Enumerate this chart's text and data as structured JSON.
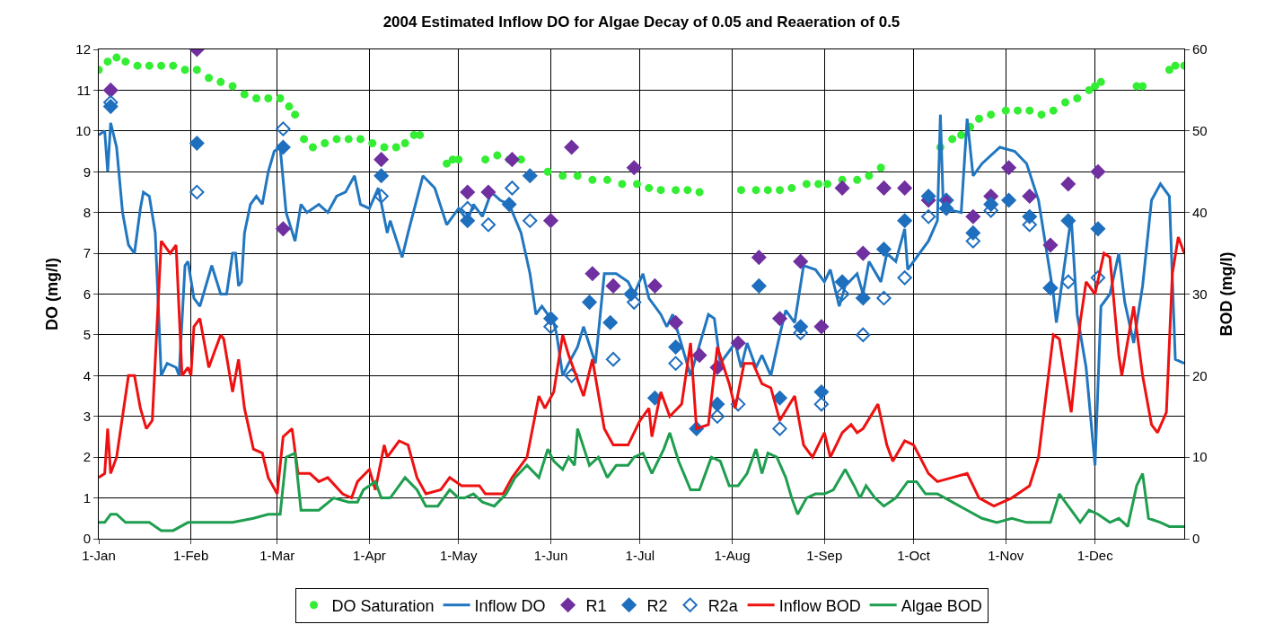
{
  "chart_data": {
    "type": "line",
    "title": "2004 Estimated Inflow DO for Algae Decay of 0.05 and Reaeration of 0.5",
    "ylabel": "DO (mg/l)",
    "y2label": "BOD (mg/l)",
    "xlim": [
      "2004-01-01",
      "2004-12-31"
    ],
    "xticks": [
      {
        "value": "2004-01-01",
        "label": "1-Jan"
      },
      {
        "value": "2004-02-01",
        "label": "1-Feb"
      },
      {
        "value": "2004-03-01",
        "label": "1-Mar"
      },
      {
        "value": "2004-04-01",
        "label": "1-Apr"
      },
      {
        "value": "2004-05-01",
        "label": "1-May"
      },
      {
        "value": "2004-06-01",
        "label": "1-Jun"
      },
      {
        "value": "2004-07-01",
        "label": "1-Jul"
      },
      {
        "value": "2004-08-01",
        "label": "1-Aug"
      },
      {
        "value": "2004-09-01",
        "label": "1-Sep"
      },
      {
        "value": "2004-10-01",
        "label": "1-Oct"
      },
      {
        "value": "2004-11-01",
        "label": "1-Nov"
      },
      {
        "value": "2004-12-01",
        "label": "1-Dec"
      }
    ],
    "ylim": [
      0,
      12
    ],
    "yticks": [
      0,
      1,
      2,
      3,
      4,
      5,
      6,
      7,
      8,
      9,
      10,
      11,
      12
    ],
    "y2lim": [
      0,
      60
    ],
    "y2ticks": [
      0,
      10,
      20,
      30,
      40,
      50,
      60
    ],
    "grid": true,
    "legend": "bottom",
    "series": [
      {
        "name": "DO Saturation",
        "type": "scatter",
        "marker": "circle",
        "color": "#33ee33",
        "x": [
          "2004-01-01",
          "2004-01-04",
          "2004-01-07",
          "2004-01-10",
          "2004-01-14",
          "2004-01-18",
          "2004-01-22",
          "2004-01-26",
          "2004-01-30",
          "2004-02-03",
          "2004-02-07",
          "2004-02-11",
          "2004-02-15",
          "2004-02-19",
          "2004-02-23",
          "2004-02-27",
          "2004-03-02",
          "2004-03-05",
          "2004-03-07",
          "2004-03-10",
          "2004-03-13",
          "2004-03-17",
          "2004-03-21",
          "2004-03-25",
          "2004-03-29",
          "2004-04-02",
          "2004-04-06",
          "2004-04-10",
          "2004-04-13",
          "2004-04-16",
          "2004-04-18",
          "2004-04-27",
          "2004-04-29",
          "2004-05-01",
          "2004-05-10",
          "2004-05-14",
          "2004-05-18",
          "2004-05-22",
          "2004-05-31",
          "2004-06-05",
          "2004-06-10",
          "2004-06-15",
          "2004-06-20",
          "2004-06-25",
          "2004-06-30",
          "2004-07-04",
          "2004-07-08",
          "2004-07-13",
          "2004-07-17",
          "2004-07-21",
          "2004-08-04",
          "2004-08-09",
          "2004-08-13",
          "2004-08-17",
          "2004-08-21",
          "2004-08-26",
          "2004-08-30",
          "2004-09-02",
          "2004-09-07",
          "2004-09-12",
          "2004-09-16",
          "2004-09-20",
          "2004-10-10",
          "2004-10-14",
          "2004-10-17",
          "2004-10-20",
          "2004-10-23",
          "2004-10-27",
          "2004-11-01",
          "2004-11-05",
          "2004-11-09",
          "2004-11-13",
          "2004-11-17",
          "2004-11-21",
          "2004-11-25",
          "2004-11-29",
          "2004-12-01",
          "2004-12-03",
          "2004-12-15",
          "2004-12-17",
          "2004-12-26",
          "2004-12-28",
          "2004-12-31"
        ],
        "values": [
          11.5,
          11.7,
          11.8,
          11.7,
          11.6,
          11.6,
          11.6,
          11.6,
          11.5,
          11.5,
          11.3,
          11.2,
          11.1,
          10.9,
          10.8,
          10.8,
          10.8,
          10.6,
          10.4,
          9.8,
          9.6,
          9.7,
          9.8,
          9.8,
          9.8,
          9.7,
          9.6,
          9.6,
          9.7,
          9.9,
          9.9,
          9.2,
          9.3,
          9.3,
          9.3,
          9.4,
          9.3,
          9.3,
          9.0,
          8.9,
          8.9,
          8.8,
          8.8,
          8.7,
          8.7,
          8.6,
          8.55,
          8.55,
          8.55,
          8.5,
          8.55,
          8.55,
          8.55,
          8.55,
          8.6,
          8.7,
          8.7,
          8.7,
          8.8,
          8.8,
          8.9,
          9.1,
          9.6,
          9.8,
          9.9,
          10.1,
          10.3,
          10.4,
          10.5,
          10.5,
          10.5,
          10.4,
          10.5,
          10.7,
          10.8,
          11.0,
          11.1,
          11.2,
          11.1,
          11.1,
          11.5,
          11.6,
          11.6
        ]
      },
      {
        "name": "Inflow DO",
        "color": "#2176c0",
        "x": [
          "2004-01-01",
          "2004-01-03",
          "2004-01-04",
          "2004-01-05",
          "2004-01-07",
          "2004-01-09",
          "2004-01-11",
          "2004-01-13",
          "2004-01-15",
          "2004-01-16",
          "2004-01-18",
          "2004-01-20",
          "2004-01-22",
          "2004-01-24",
          "2004-01-27",
          "2004-01-28",
          "2004-01-30",
          "2004-01-31",
          "2004-02-02",
          "2004-02-04",
          "2004-02-08",
          "2004-02-11",
          "2004-02-13",
          "2004-02-15",
          "2004-02-16",
          "2004-02-17",
          "2004-02-18",
          "2004-02-19",
          "2004-02-21",
          "2004-02-23",
          "2004-02-25",
          "2004-02-27",
          "2004-02-29",
          "2004-03-02",
          "2004-03-04",
          "2004-03-07",
          "2004-03-09",
          "2004-03-11",
          "2004-03-15",
          "2004-03-18",
          "2004-03-21",
          "2004-03-24",
          "2004-03-27",
          "2004-03-29",
          "2004-04-01",
          "2004-04-04",
          "2004-04-07",
          "2004-04-08",
          "2004-04-12",
          "2004-04-14",
          "2004-04-19",
          "2004-04-23",
          "2004-04-27",
          "2004-05-01",
          "2004-05-04",
          "2004-05-06",
          "2004-05-09",
          "2004-05-12",
          "2004-05-15",
          "2004-05-18",
          "2004-05-22",
          "2004-05-25",
          "2004-05-27",
          "2004-05-29",
          "2004-06-02",
          "2004-06-03",
          "2004-06-05",
          "2004-06-07",
          "2004-06-10",
          "2004-06-12",
          "2004-06-16",
          "2004-06-19",
          "2004-06-23",
          "2004-06-27",
          "2004-06-29",
          "2004-07-02",
          "2004-07-04",
          "2004-07-08",
          "2004-07-10",
          "2004-07-12",
          "2004-07-14",
          "2004-07-18",
          "2004-07-20",
          "2004-07-24",
          "2004-07-26",
          "2004-07-28",
          "2004-08-02",
          "2004-08-04",
          "2004-08-06",
          "2004-08-09",
          "2004-08-11",
          "2004-08-14",
          "2004-08-17",
          "2004-08-19",
          "2004-08-22",
          "2004-08-25",
          "2004-08-29",
          "2004-09-01",
          "2004-09-03",
          "2004-09-06",
          "2004-09-08",
          "2004-09-12",
          "2004-09-14",
          "2004-09-16",
          "2004-09-20",
          "2004-09-22",
          "2004-09-25",
          "2004-09-28",
          "2004-09-29",
          "2004-10-01",
          "2004-10-06",
          "2004-10-09",
          "2004-10-10",
          "2004-10-11",
          "2004-10-17",
          "2004-10-19",
          "2004-10-21",
          "2004-10-24",
          "2004-10-30",
          "2004-11-04",
          "2004-11-08",
          "2004-11-12",
          "2004-11-17",
          "2004-11-18",
          "2004-11-19",
          "2004-11-23",
          "2004-11-25",
          "2004-11-28",
          "2004-12-01",
          "2004-12-03",
          "2004-12-06",
          "2004-12-09",
          "2004-12-11",
          "2004-12-14",
          "2004-12-17",
          "2004-12-20",
          "2004-12-23",
          "2004-12-26",
          "2004-12-28",
          "2004-12-31"
        ],
        "values": [
          9.9,
          10.0,
          9.0,
          10.2,
          9.6,
          8.0,
          7.2,
          7.0,
          8.1,
          8.5,
          8.4,
          7.5,
          4.0,
          4.3,
          4.2,
          4.0,
          6.7,
          6.8,
          5.9,
          5.7,
          6.7,
          6.0,
          6.0,
          7.0,
          7.0,
          6.2,
          6.3,
          7.5,
          8.2,
          8.4,
          8.2,
          9.0,
          9.5,
          9.6,
          8.0,
          7.3,
          8.2,
          8.0,
          8.2,
          8.0,
          8.4,
          8.5,
          8.9,
          8.2,
          8.1,
          8.6,
          7.5,
          7.8,
          6.9,
          7.5,
          8.9,
          8.6,
          7.7,
          8.1,
          7.8,
          8.2,
          7.9,
          8.5,
          8.3,
          8.2,
          7.5,
          6.5,
          5.5,
          5.7,
          5.3,
          5.0,
          4.0,
          4.3,
          4.7,
          5.2,
          4.3,
          6.5,
          6.5,
          6.3,
          6.0,
          6.5,
          5.9,
          5.5,
          5.2,
          5.5,
          5.0,
          4.0,
          4.5,
          5.5,
          5.4,
          4.3,
          4.8,
          4.2,
          4.8,
          4.2,
          4.5,
          4.0,
          5.0,
          5.6,
          5.3,
          6.7,
          6.6,
          6.3,
          6.6,
          5.7,
          6.2,
          6.5,
          6.0,
          6.8,
          6.3,
          7.0,
          6.8,
          7.6,
          6.6,
          6.8,
          7.3,
          7.8,
          10.4,
          8.1,
          8.0,
          10.3,
          8.9,
          9.2,
          9.6,
          9.5,
          9.2,
          8.3,
          6.0,
          5.3,
          5.8,
          7.9,
          5.5,
          4.2,
          1.8,
          5.7,
          6.0,
          7.0,
          5.8,
          4.8,
          6.2,
          8.3,
          8.7,
          8.4,
          4.4,
          4.3
        ]
      },
      {
        "name": "R1",
        "type": "scatter",
        "marker": "diamond",
        "color": "#7030a0",
        "x": [
          "2004-01-05",
          "2004-02-03",
          "2004-03-03",
          "2004-04-05",
          "2004-05-04",
          "2004-05-11",
          "2004-05-19",
          "2004-06-01",
          "2004-06-08",
          "2004-06-15",
          "2004-06-22",
          "2004-06-29",
          "2004-07-06",
          "2004-07-13",
          "2004-07-21",
          "2004-07-27",
          "2004-08-03",
          "2004-08-10",
          "2004-08-17",
          "2004-08-24",
          "2004-08-31",
          "2004-09-07",
          "2004-09-14",
          "2004-09-21",
          "2004-09-28",
          "2004-10-06",
          "2004-10-12",
          "2004-10-21",
          "2004-10-27",
          "2004-11-02",
          "2004-11-09",
          "2004-11-16",
          "2004-11-22",
          "2004-12-02"
        ],
        "values": [
          11.0,
          12.0,
          7.6,
          9.3,
          8.5,
          8.5,
          9.3,
          7.8,
          9.6,
          6.5,
          6.2,
          9.1,
          6.2,
          5.3,
          4.5,
          4.2,
          4.8,
          6.9,
          5.4,
          6.8,
          5.2,
          8.6,
          7.0,
          8.6,
          8.6,
          8.3,
          8.3,
          7.9,
          8.4,
          9.1,
          8.4,
          7.2,
          8.7,
          9.0
        ]
      },
      {
        "name": "R2",
        "type": "scatter",
        "marker": "diamond",
        "color": "#1f6fbf",
        "x": [
          "2004-01-05",
          "2004-02-03",
          "2004-03-03",
          "2004-04-05",
          "2004-05-04",
          "2004-05-18",
          "2004-05-25",
          "2004-06-01",
          "2004-06-14",
          "2004-06-21",
          "2004-06-28",
          "2004-07-06",
          "2004-07-13",
          "2004-07-20",
          "2004-07-27",
          "2004-08-10",
          "2004-08-17",
          "2004-08-24",
          "2004-08-31",
          "2004-09-07",
          "2004-09-14",
          "2004-09-21",
          "2004-09-28",
          "2004-10-06",
          "2004-10-12",
          "2004-10-21",
          "2004-10-27",
          "2004-11-02",
          "2004-11-09",
          "2004-11-16",
          "2004-11-22",
          "2004-12-02"
        ],
        "values": [
          10.6,
          9.7,
          9.6,
          8.9,
          7.8,
          8.2,
          8.9,
          5.4,
          5.8,
          5.3,
          6.0,
          3.45,
          4.7,
          2.7,
          3.3,
          6.2,
          3.45,
          5.2,
          3.6,
          6.3,
          5.9,
          7.1,
          7.8,
          8.4,
          8.1,
          7.5,
          8.2,
          8.3,
          7.9,
          6.15,
          7.8,
          7.6
        ]
      },
      {
        "name": "R2a",
        "type": "scatter",
        "marker": "diamond-open",
        "color": "#1f6fbf",
        "x": [
          "2004-01-05",
          "2004-02-03",
          "2004-03-03",
          "2004-04-05",
          "2004-05-04",
          "2004-05-11",
          "2004-05-19",
          "2004-05-25",
          "2004-06-01",
          "2004-06-08",
          "2004-06-22",
          "2004-06-29",
          "2004-07-13",
          "2004-07-27",
          "2004-08-03",
          "2004-08-17",
          "2004-08-24",
          "2004-08-31",
          "2004-09-07",
          "2004-09-14",
          "2004-09-21",
          "2004-09-28",
          "2004-10-06",
          "2004-10-12",
          "2004-10-21",
          "2004-10-27",
          "2004-11-09",
          "2004-11-16",
          "2004-11-22",
          "2004-12-02"
        ],
        "values": [
          10.7,
          8.5,
          10.05,
          8.4,
          8.1,
          7.7,
          8.6,
          7.8,
          5.2,
          4.0,
          4.4,
          5.8,
          4.3,
          3.0,
          3.3,
          2.7,
          5.05,
          3.3,
          6.0,
          5.0,
          5.9,
          6.4,
          7.9,
          8.3,
          7.3,
          8.05,
          7.7,
          6.15,
          6.3,
          6.4
        ]
      },
      {
        "name": "Inflow BOD",
        "axis": "y2",
        "color": "#ee1111",
        "x": [
          "2004-01-01",
          "2004-01-03",
          "2004-01-04",
          "2004-01-05",
          "2004-01-07",
          "2004-01-09",
          "2004-01-11",
          "2004-01-13",
          "2004-01-15",
          "2004-01-17",
          "2004-01-18",
          "2004-01-19",
          "2004-01-22",
          "2004-01-25",
          "2004-01-27",
          "2004-01-29",
          "2004-01-31",
          "2004-02-01",
          "2004-02-02",
          "2004-02-04",
          "2004-02-07",
          "2004-02-09",
          "2004-02-11",
          "2004-02-12",
          "2004-02-15",
          "2004-02-17",
          "2004-02-19",
          "2004-02-22",
          "2004-02-25",
          "2004-02-27",
          "2004-03-01",
          "2004-03-03",
          "2004-03-06",
          "2004-03-08",
          "2004-03-12",
          "2004-03-15",
          "2004-03-18",
          "2004-03-23",
          "2004-03-26",
          "2004-03-28",
          "2004-04-01",
          "2004-04-03",
          "2004-04-06",
          "2004-04-07",
          "2004-04-11",
          "2004-04-14",
          "2004-04-17",
          "2004-04-20",
          "2004-04-25",
          "2004-04-28",
          "2004-05-02",
          "2004-05-04",
          "2004-05-08",
          "2004-05-10",
          "2004-05-14",
          "2004-05-16",
          "2004-05-19",
          "2004-05-24",
          "2004-05-28",
          "2004-05-30",
          "2004-06-02",
          "2004-06-05",
          "2004-06-07",
          "2004-06-12",
          "2004-06-15",
          "2004-06-19",
          "2004-06-22",
          "2004-06-27",
          "2004-07-01",
          "2004-07-04",
          "2004-07-05",
          "2004-07-08",
          "2004-07-11",
          "2004-07-15",
          "2004-07-18",
          "2004-07-20",
          "2004-07-24",
          "2004-07-27",
          "2004-07-31",
          "2004-08-02",
          "2004-08-05",
          "2004-08-08",
          "2004-08-11",
          "2004-08-14",
          "2004-08-17",
          "2004-08-22",
          "2004-08-25",
          "2004-08-28",
          "2004-09-01",
          "2004-09-03",
          "2004-09-07",
          "2004-09-10",
          "2004-09-12",
          "2004-09-14",
          "2004-09-19",
          "2004-09-22",
          "2004-09-24",
          "2004-09-28",
          "2004-10-01",
          "2004-10-06",
          "2004-10-09",
          "2004-10-14",
          "2004-10-19",
          "2004-10-23",
          "2004-10-28",
          "2004-11-03",
          "2004-11-09",
          "2004-11-12",
          "2004-11-17",
          "2004-11-19",
          "2004-11-23",
          "2004-11-26",
          "2004-11-28",
          "2004-12-01",
          "2004-12-04",
          "2004-12-06",
          "2004-12-09",
          "2004-12-10",
          "2004-12-14",
          "2004-12-17",
          "2004-12-20",
          "2004-12-22",
          "2004-12-25",
          "2004-12-27",
          "2004-12-29",
          "2004-12-31"
        ],
        "values": [
          7.5,
          8,
          13.5,
          8,
          10,
          15,
          20,
          20,
          16,
          13.5,
          14,
          14.5,
          36.5,
          35,
          36,
          20,
          21,
          20,
          26,
          27,
          21,
          23,
          25,
          24.5,
          18,
          22,
          16,
          11,
          10.5,
          7.5,
          5.5,
          12.5,
          13.5,
          8,
          8,
          7,
          7.5,
          5.5,
          5,
          7,
          8.5,
          6,
          11.5,
          10,
          12,
          11.5,
          7.5,
          5.5,
          6,
          7.5,
          6.5,
          6.5,
          6.5,
          5.5,
          5.5,
          5.5,
          7.5,
          10,
          17.5,
          16,
          18,
          25,
          22.5,
          17.5,
          22,
          13.5,
          11.5,
          11.5,
          14.5,
          16,
          12.5,
          18,
          15,
          16.5,
          24,
          13.5,
          14,
          23.5,
          19,
          16,
          21.5,
          21.5,
          19,
          18.5,
          14.5,
          17.5,
          11.5,
          10,
          13,
          10,
          13,
          14,
          13,
          13.5,
          16.5,
          11.5,
          9.5,
          12,
          11.5,
          8,
          7,
          7.5,
          8,
          5,
          4,
          5,
          6.5,
          10,
          25,
          24.5,
          15.5,
          26.5,
          31.5,
          30,
          35,
          34.5,
          22.5,
          20,
          28.5,
          20,
          14,
          13,
          15.5,
          32.5,
          37,
          35
        ]
      },
      {
        "name": "Algae BOD",
        "axis": "y2",
        "color": "#1e9e4e",
        "x": [
          "2004-01-01",
          "2004-01-03",
          "2004-01-05",
          "2004-01-07",
          "2004-01-10",
          "2004-01-15",
          "2004-01-18",
          "2004-01-22",
          "2004-01-26",
          "2004-01-31",
          "2004-02-05",
          "2004-02-15",
          "2004-02-22",
          "2004-02-27",
          "2004-03-01",
          "2004-03-02",
          "2004-03-04",
          "2004-03-07",
          "2004-03-09",
          "2004-03-15",
          "2004-03-20",
          "2004-03-25",
          "2004-03-28",
          "2004-03-30",
          "2004-04-03",
          "2004-04-05",
          "2004-04-08",
          "2004-04-13",
          "2004-04-17",
          "2004-04-20",
          "2004-04-24",
          "2004-04-28",
          "2004-05-01",
          "2004-05-03",
          "2004-05-06",
          "2004-05-09",
          "2004-05-13",
          "2004-05-17",
          "2004-05-20",
          "2004-05-24",
          "2004-05-28",
          "2004-05-31",
          "2004-06-02",
          "2004-06-05",
          "2004-06-07",
          "2004-06-09",
          "2004-06-10",
          "2004-06-14",
          "2004-06-17",
          "2004-06-20",
          "2004-06-23",
          "2004-06-27",
          "2004-06-29",
          "2004-07-02",
          "2004-07-05",
          "2004-07-09",
          "2004-07-11",
          "2004-07-14",
          "2004-07-18",
          "2004-07-21",
          "2004-07-25",
          "2004-07-28",
          "2004-07-31",
          "2004-08-03",
          "2004-08-06",
          "2004-08-09",
          "2004-08-11",
          "2004-08-13",
          "2004-08-16",
          "2004-08-19",
          "2004-08-21",
          "2004-08-23",
          "2004-08-26",
          "2004-08-29",
          "2004-09-01",
          "2004-09-04",
          "2004-09-08",
          "2004-09-11",
          "2004-09-13",
          "2004-09-15",
          "2004-09-18",
          "2004-09-21",
          "2004-09-25",
          "2004-09-29",
          "2004-10-02",
          "2004-10-05",
          "2004-10-09",
          "2004-10-14",
          "2004-10-19",
          "2004-10-24",
          "2004-10-29",
          "2004-11-03",
          "2004-11-08",
          "2004-11-12",
          "2004-11-16",
          "2004-11-19",
          "2004-11-23",
          "2004-11-26",
          "2004-11-29",
          "2004-12-02",
          "2004-12-06",
          "2004-12-09",
          "2004-12-12",
          "2004-12-15",
          "2004-12-17",
          "2004-12-19",
          "2004-12-23",
          "2004-12-26",
          "2004-12-31"
        ],
        "values": [
          2,
          2,
          3,
          3,
          2,
          2,
          2,
          1,
          1,
          2,
          2,
          2,
          2.5,
          3,
          3,
          3,
          10,
          10.5,
          3.5,
          3.5,
          5,
          4.5,
          4.5,
          6,
          7,
          5,
          5,
          7.5,
          6,
          4,
          4,
          6,
          5,
          5,
          5.5,
          4.5,
          4,
          5.5,
          7.5,
          9,
          7.5,
          11,
          9.5,
          8.5,
          10,
          9,
          13.5,
          9,
          10,
          7.5,
          9,
          9,
          10,
          10.5,
          8,
          11,
          13,
          9.5,
          6,
          6,
          10,
          9.5,
          6.5,
          6.5,
          8,
          11,
          8,
          10.5,
          10,
          7.5,
          5,
          3,
          5,
          5.5,
          5.5,
          6,
          8.5,
          6.5,
          5,
          6.5,
          5,
          4,
          5,
          7,
          7,
          5.5,
          5.5,
          4.5,
          3.5,
          2.5,
          2,
          2.5,
          2,
          2,
          2,
          5.5,
          3.5,
          2,
          3.5,
          3,
          2,
          2.5,
          1.5,
          6.5,
          8,
          2.5,
          2,
          1.5,
          1.5
        ]
      }
    ]
  }
}
